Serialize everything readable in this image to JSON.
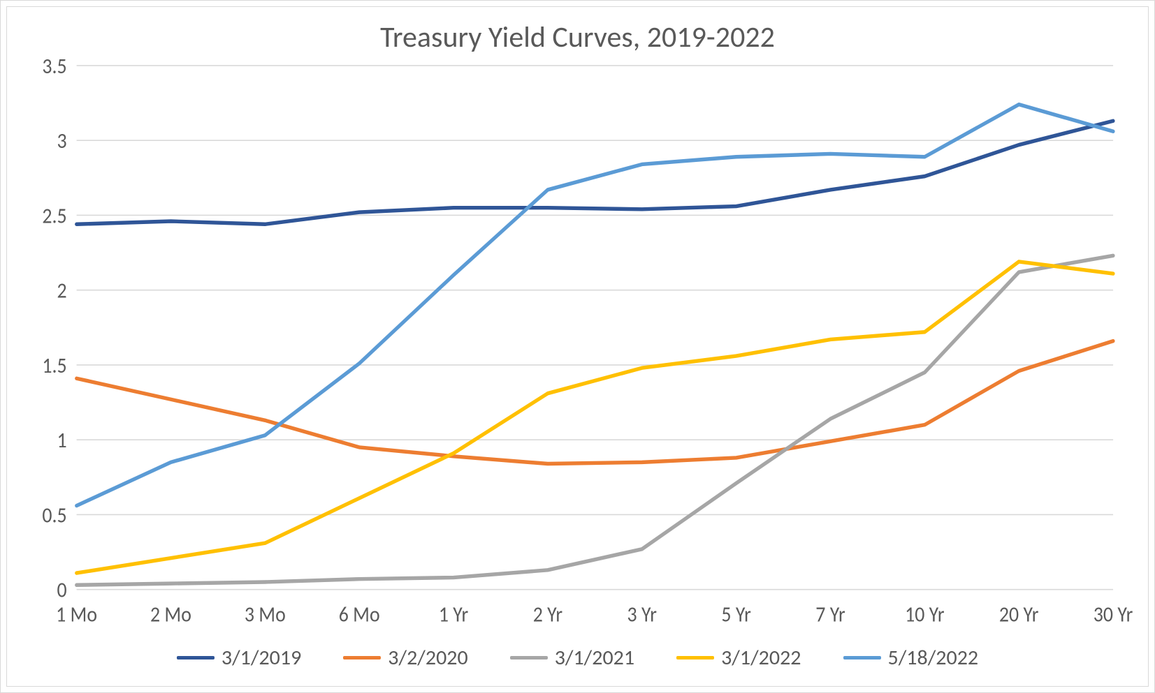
{
  "chart": {
    "type": "line",
    "title": "Treasury Yield Curves, 2019-2022",
    "title_fontsize": 42,
    "title_color": "#595959",
    "background_color": "#ffffff",
    "border_color": "#d9d9d9",
    "grid_color": "#d9d9d9",
    "axis_text_color": "#595959",
    "axis_fontsize": 28,
    "line_width": 5,
    "categories": [
      "1 Mo",
      "2 Mo",
      "3 Mo",
      "6 Mo",
      "1 Yr",
      "2 Yr",
      "3 Yr",
      "5 Yr",
      "7 Yr",
      "10 Yr",
      "20 Yr",
      "30 Yr"
    ],
    "ylim": [
      0,
      3.5
    ],
    "ytick_step": 0.5,
    "ytick_labels": [
      "0",
      "0.5",
      "1",
      "1.5",
      "2",
      "2.5",
      "3",
      "3.5"
    ],
    "series": [
      {
        "label": "3/1/2019",
        "color": "#2f5597",
        "values": [
          2.44,
          2.46,
          2.44,
          2.52,
          2.55,
          2.55,
          2.54,
          2.56,
          2.67,
          2.76,
          2.97,
          3.13
        ]
      },
      {
        "label": "3/2/2020",
        "color": "#ed7d31",
        "values": [
          1.41,
          1.27,
          1.13,
          0.95,
          0.89,
          0.84,
          0.85,
          0.88,
          0.99,
          1.1,
          1.46,
          1.66
        ]
      },
      {
        "label": "3/1/2021",
        "color": "#a6a6a6",
        "values": [
          0.03,
          0.04,
          0.05,
          0.07,
          0.08,
          0.13,
          0.27,
          0.71,
          1.14,
          1.45,
          2.12,
          2.23
        ]
      },
      {
        "label": "3/1/2022",
        "color": "#ffc000",
        "values": [
          0.11,
          0.21,
          0.31,
          0.61,
          0.91,
          1.31,
          1.48,
          1.56,
          1.67,
          1.72,
          2.19,
          2.11
        ]
      },
      {
        "label": "5/18/2022",
        "color": "#5b9bd5",
        "values": [
          0.56,
          0.85,
          1.03,
          1.51,
          2.1,
          2.67,
          2.84,
          2.89,
          2.91,
          2.89,
          3.24,
          3.06
        ]
      }
    ],
    "legend_position": "bottom"
  }
}
